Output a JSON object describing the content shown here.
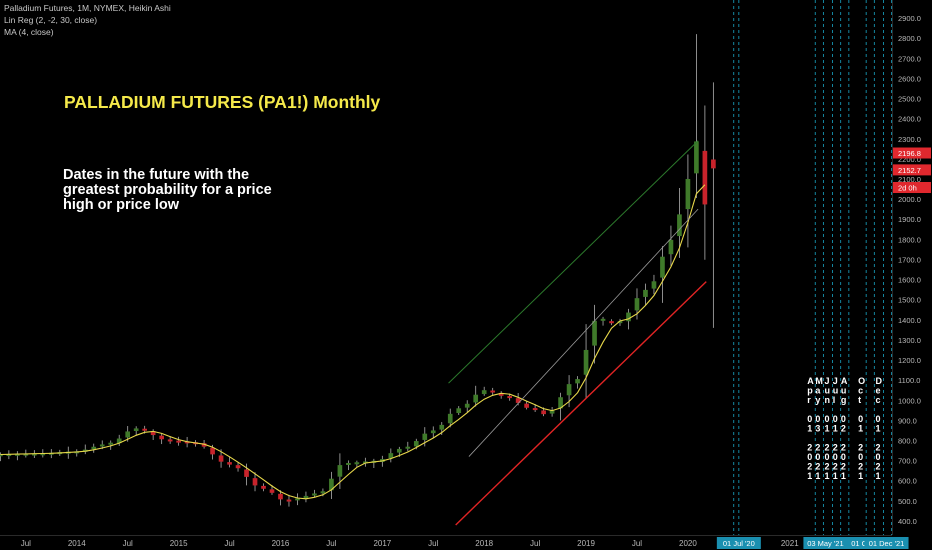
{
  "legend": {
    "symbol": "Palladium Futures, 1M, NYMEX, Heikin Ashi",
    "linreg": "Lin Reg (2, -2, 30, close)",
    "ma": "MA (4, close)"
  },
  "annotations": {
    "headline": "PALLADIUM FUTURES (PA1!) Monthly",
    "note": "Dates in the future with the greatest probability for a price high or price low"
  },
  "price_tags": {
    "current": "2196.8",
    "secondary": "2152.7",
    "countdown": "2d 0h"
  },
  "colors": {
    "background": "#000000",
    "bull": "#3f7a2a",
    "bear": "#c8232b",
    "ma": "#e8d84a",
    "channel_upper": "#2c7a2c",
    "channel_lower": "#e02424",
    "channel_mid": "#9a9a9a",
    "cycle_line": "#1aa7c7",
    "headline": "#f5e94a"
  },
  "date_markers": [
    {
      "line1": "Jun",
      "line2": "01",
      "line3": "2021",
      "time": 2021.42
    },
    {
      "line1": "Jul",
      "line2": "01",
      "line3": "2021",
      "time": 2021.5
    },
    {
      "line1": "Apr",
      "line2": "01",
      "line3": "2021",
      "time": 2021.25
    },
    {
      "line1": "May",
      "line2": "03",
      "line3": "2021",
      "time": 2021.33
    },
    {
      "line1": "Aug",
      "line2": "02",
      "line3": "2021",
      "time": 2021.58
    },
    {
      "line1": "Oct",
      "line2": "01",
      "line3": "2021",
      "time": 2021.75
    },
    {
      "line1": "Dec",
      "line2": "01",
      "line3": "2021",
      "time": 2021.92
    }
  ],
  "x_badges": [
    "01 Jul '20",
    "03 May '21",
    "01 Oct '21",
    "01 Dec '21"
  ],
  "chart_data": {
    "type": "candlestick",
    "title": "Palladium Futures, 1M, NYMEX, Heikin Ashi",
    "xlabel": "",
    "ylabel": "",
    "xlim": [
      2013.05,
      2022.2
    ],
    "ylim": [
      350,
      2950
    ],
    "y_ticks": [
      400,
      500,
      600,
      700,
      800,
      900,
      1000,
      1100,
      1200,
      1300,
      1400,
      1500,
      1600,
      1700,
      1800,
      1900,
      2000,
      2100,
      2200,
      2300,
      2400,
      2500,
      2600,
      2700,
      2800,
      2900
    ],
    "x_ticks": [
      {
        "label": "Jul",
        "t": 2013.5
      },
      {
        "label": "2014",
        "t": 2014.0
      },
      {
        "label": "Jul",
        "t": 2014.5
      },
      {
        "label": "2015",
        "t": 2015.0
      },
      {
        "label": "Jul",
        "t": 2015.5
      },
      {
        "label": "2016",
        "t": 2016.0
      },
      {
        "label": "Jul",
        "t": 2016.5
      },
      {
        "label": "2017",
        "t": 2017.0
      },
      {
        "label": "Jul",
        "t": 2017.5
      },
      {
        "label": "2018",
        "t": 2018.0
      },
      {
        "label": "Jul",
        "t": 2018.5
      },
      {
        "label": "2019",
        "t": 2019.0
      },
      {
        "label": "Jul",
        "t": 2019.5
      },
      {
        "label": "2020",
        "t": 2020.0
      },
      {
        "label": "2021",
        "t": 2021.0
      }
    ],
    "waypoints": [
      [
        2013.0,
        720
      ],
      [
        2013.5,
        725
      ],
      [
        2013.9,
        735
      ],
      [
        2014.3,
        780
      ],
      [
        2014.58,
        860
      ],
      [
        2014.9,
        800
      ],
      [
        2015.15,
        790
      ],
      [
        2015.5,
        680
      ],
      [
        2015.83,
        560
      ],
      [
        2016.05,
        500
      ],
      [
        2016.4,
        540
      ],
      [
        2016.6,
        680
      ],
      [
        2016.9,
        690
      ],
      [
        2017.2,
        760
      ],
      [
        2017.5,
        850
      ],
      [
        2017.75,
        960
      ],
      [
        2018.0,
        1050
      ],
      [
        2018.2,
        1020
      ],
      [
        2018.45,
        960
      ],
      [
        2018.6,
        930
      ],
      [
        2018.9,
        1100
      ],
      [
        2019.1,
        1400
      ],
      [
        2019.3,
        1380
      ],
      [
        2019.6,
        1550
      ],
      [
        2019.85,
        1800
      ],
      [
        2020.0,
        2100
      ],
      [
        2020.1,
        2300
      ],
      [
        2020.18,
        1950
      ]
    ],
    "last_candle": {
      "t": 2020.25,
      "open": 2196.8,
      "close": 2152.7,
      "high": 2580,
      "low": 1360
    },
    "spikes": [
      {
        "t": 2020.08,
        "high": 2820
      }
    ],
    "regression": {
      "mid": [
        [
          2017.85,
          720
        ],
        [
          2020.1,
          1950
        ]
      ],
      "upper": [
        [
          2017.65,
          1085
        ],
        [
          2020.1,
          2290
        ]
      ],
      "lower": [
        [
          2017.72,
          380
        ],
        [
          2020.18,
          1590
        ]
      ]
    },
    "cycle_lines": [
      2020.45,
      2020.5,
      2021.25,
      2021.33,
      2021.42,
      2021.5,
      2021.58,
      2021.75,
      2021.83,
      2021.92,
      2022.0
    ]
  }
}
